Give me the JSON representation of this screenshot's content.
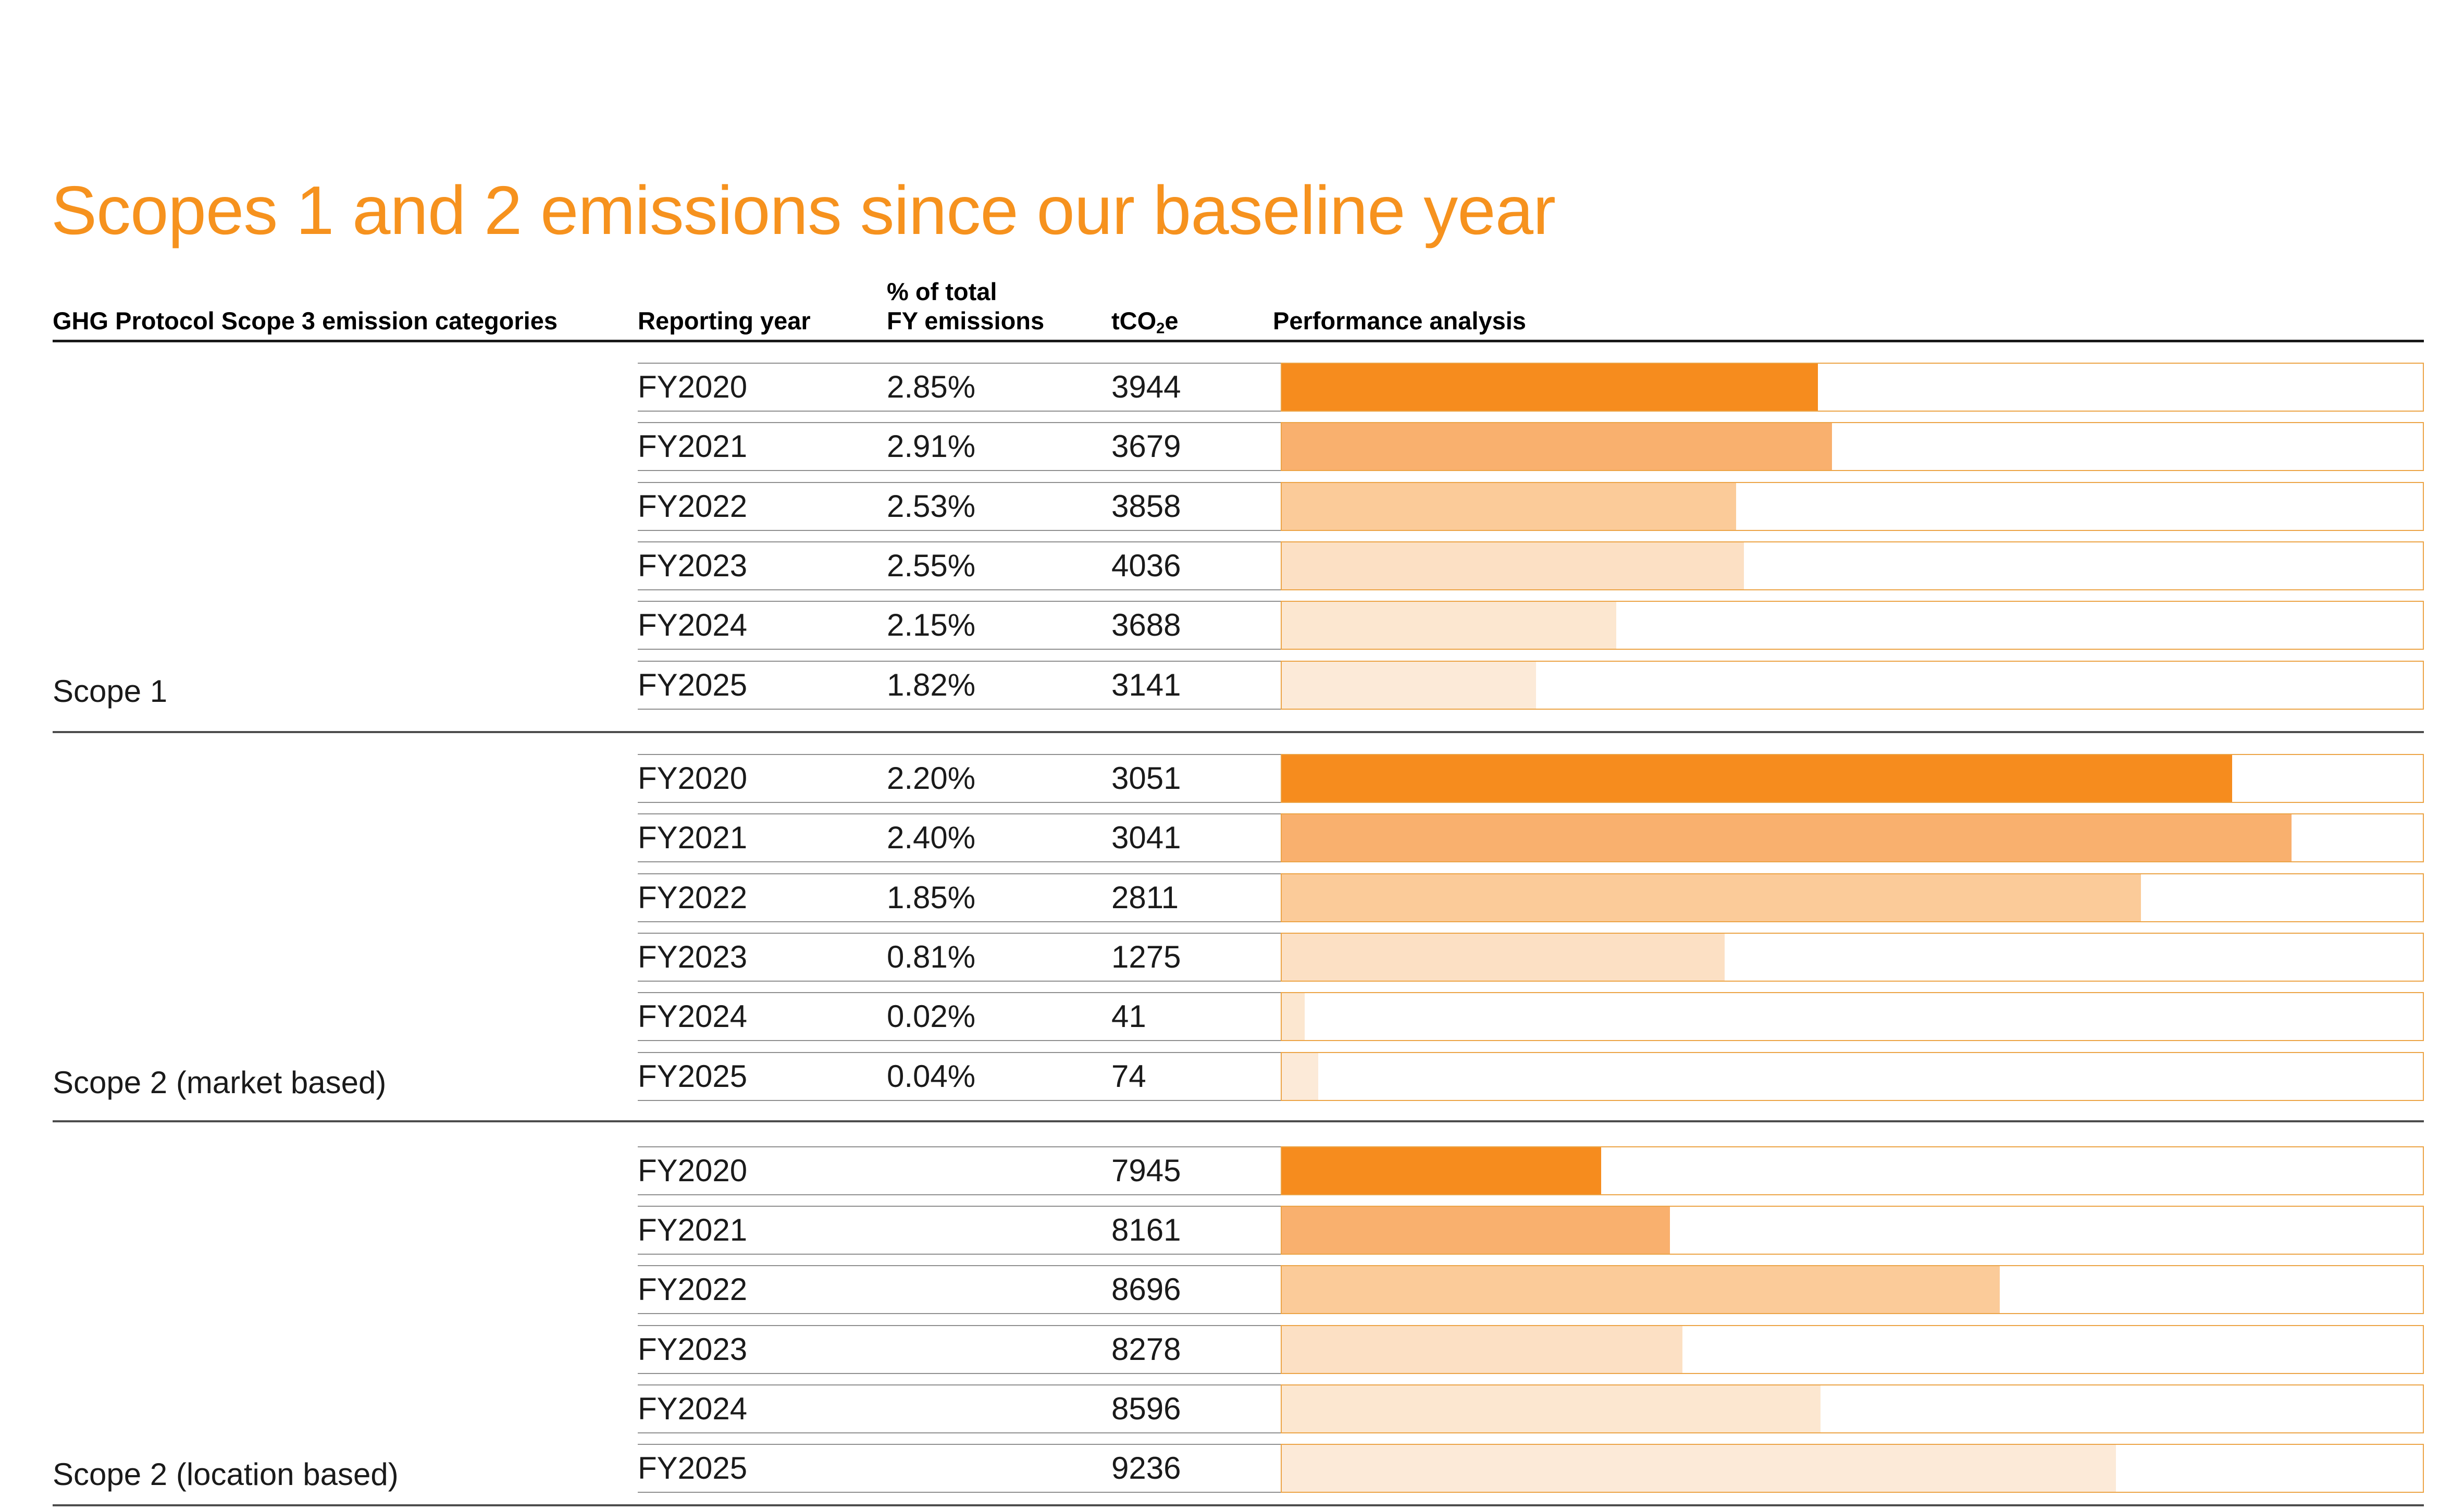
{
  "page": {
    "title": "Scopes 1 and 2 emissions since our baseline year",
    "title_color": "#F6921E"
  },
  "table": {
    "headers": {
      "category": "GHG Protocol Scope 3 emission categories",
      "year": "Reporting year",
      "pct_line1": "% of total",
      "pct_line2": "FY emissions",
      "tco2e_prefix": "tCO",
      "tco2e_sub": "2",
      "tco2e_suffix": "e",
      "performance": "Performance analysis"
    },
    "sections": [
      {
        "label": "Scope 1",
        "rows": [
          {
            "year": "FY2020",
            "pct": "2.85%",
            "tco2e": "3944",
            "bar_pct": 47.0,
            "bar_color": "#F68C1E"
          },
          {
            "year": "FY2021",
            "pct": "2.91%",
            "tco2e": "3679",
            "bar_pct": 48.2,
            "bar_color": "#F9B06E"
          },
          {
            "year": "FY2022",
            "pct": "2.53%",
            "tco2e": "3858",
            "bar_pct": 39.8,
            "bar_color": "#FBCB99"
          },
          {
            "year": "FY2023",
            "pct": "2.55%",
            "tco2e": "4036",
            "bar_pct": 40.5,
            "bar_color": "#FCE0C4"
          },
          {
            "year": "FY2024",
            "pct": "2.15%",
            "tco2e": "3688",
            "bar_pct": 29.3,
            "bar_color": "#FCE7D0"
          },
          {
            "year": "FY2025",
            "pct": "1.82%",
            "tco2e": "3141",
            "bar_pct": 22.3,
            "bar_color": "#FCEAD8"
          }
        ]
      },
      {
        "label": "Scope 2 (market based)",
        "rows": [
          {
            "year": "FY2020",
            "pct": "2.20%",
            "tco2e": "3051",
            "bar_pct": 83.3,
            "bar_color": "#F68C1E"
          },
          {
            "year": "FY2021",
            "pct": "2.40%",
            "tco2e": "3041",
            "bar_pct": 88.5,
            "bar_color": "#F9B06E"
          },
          {
            "year": "FY2022",
            "pct": "1.85%",
            "tco2e": "2811",
            "bar_pct": 75.3,
            "bar_color": "#FBCB99"
          },
          {
            "year": "FY2023",
            "pct": "0.81%",
            "tco2e": "1275",
            "bar_pct": 38.8,
            "bar_color": "#FCE0C4"
          },
          {
            "year": "FY2024",
            "pct": "0.02%",
            "tco2e": "41",
            "bar_pct": 2.0,
            "bar_color": "#FCE7D0"
          },
          {
            "year": "FY2025",
            "pct": "0.04%",
            "tco2e": "74",
            "bar_pct": 3.2,
            "bar_color": "#FCEAD8"
          }
        ]
      },
      {
        "label": "Scope 2 (location based)",
        "rows": [
          {
            "year": "FY2020",
            "pct": "",
            "tco2e": "7945",
            "bar_pct": 28.0,
            "bar_color": "#F68C1E"
          },
          {
            "year": "FY2021",
            "pct": "",
            "tco2e": "8161",
            "bar_pct": 34.0,
            "bar_color": "#F9B06E"
          },
          {
            "year": "FY2022",
            "pct": "",
            "tco2e": "8696",
            "bar_pct": 62.9,
            "bar_color": "#FBCB99"
          },
          {
            "year": "FY2023",
            "pct": "",
            "tco2e": "8278",
            "bar_pct": 35.1,
            "bar_color": "#FCE0C4"
          },
          {
            "year": "FY2024",
            "pct": "",
            "tco2e": "8596",
            "bar_pct": 47.2,
            "bar_color": "#FCE7D0"
          },
          {
            "year": "FY2025",
            "pct": "",
            "tco2e": "9236",
            "bar_pct": 73.1,
            "bar_color": "#FCEAD8"
          }
        ]
      }
    ]
  },
  "styles": {
    "bar_track_border": "#ECA446",
    "row_line": "#8F8F8F",
    "section_line": "#4D4D4D",
    "header_rule": "#1A1A1A",
    "text": "#1A1A1A"
  },
  "chart_data": {
    "type": "bar",
    "title": "Scopes 1 and 2 emissions since our baseline year",
    "categories": [
      "FY2020",
      "FY2021",
      "FY2022",
      "FY2023",
      "FY2024",
      "FY2025"
    ],
    "series": [
      {
        "name": "Scope 1",
        "values_tco2e": [
          3944,
          3679,
          3858,
          4036,
          3688,
          3141
        ],
        "pct_of_total_fy_emissions": [
          "2.85%",
          "2.91%",
          "2.53%",
          "2.55%",
          "2.15%",
          "1.82%"
        ],
        "bar_length_pct_of_track": [
          47.0,
          48.2,
          39.8,
          40.5,
          29.3,
          22.3
        ]
      },
      {
        "name": "Scope 2 (market based)",
        "values_tco2e": [
          3051,
          3041,
          2811,
          1275,
          41,
          74
        ],
        "pct_of_total_fy_emissions": [
          "2.20%",
          "2.40%",
          "1.85%",
          "0.81%",
          "0.02%",
          "0.04%"
        ],
        "bar_length_pct_of_track": [
          83.3,
          88.5,
          75.3,
          38.8,
          2.0,
          3.2
        ]
      },
      {
        "name": "Scope 2 (location based)",
        "values_tco2e": [
          7945,
          8161,
          8696,
          8278,
          8596,
          9236
        ],
        "pct_of_total_fy_emissions": [
          "",
          "",
          "",
          "",
          "",
          ""
        ],
        "bar_length_pct_of_track": [
          28.0,
          34.0,
          62.9,
          35.1,
          47.2,
          73.1
        ]
      }
    ],
    "xlabel": "tCO2e",
    "ylabel": "Reporting year",
    "legend_position": "none",
    "grid": false,
    "bar_color_ramp_dark_to_light": [
      "#F68C1E",
      "#F9B06E",
      "#FBCB99",
      "#FCE0C4",
      "#FCE7D0",
      "#FCEAD8"
    ],
    "orientation": "horizontal"
  }
}
